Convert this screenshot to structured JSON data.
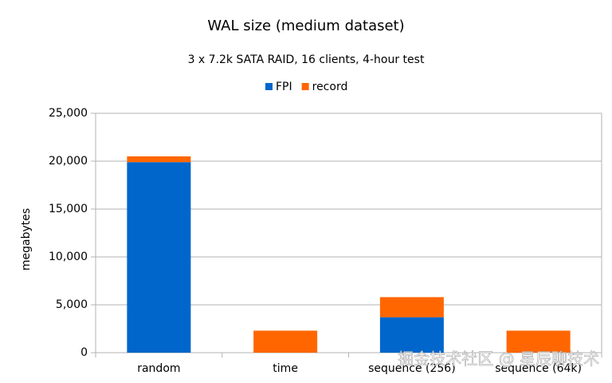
{
  "chart_data": {
    "type": "stacked_bar",
    "title": "WAL size (medium dataset)",
    "subtitle": "3 x 7.2k SATA RAID, 16 clients, 4-hour test",
    "y_label": "megabytes",
    "categories": [
      "random",
      "time",
      "sequence (256)",
      "sequence (64k)"
    ],
    "series": [
      {
        "name": "FPI",
        "color": "#0066cc",
        "values": [
          19900,
          0,
          3700,
          0
        ]
      },
      {
        "name": "record",
        "color": "#ff6600",
        "values": [
          600,
          2300,
          2100,
          2300
        ]
      }
    ],
    "ylim": [
      0,
      25000
    ],
    "yticks": [
      0,
      {
        "value": 5000,
        "label": "5,000"
      },
      {
        "value": 10000,
        "label": "10,000"
      },
      {
        "value": 15000,
        "label": "15,000"
      },
      {
        "value": 20000,
        "label": "20,000"
      },
      {
        "value": 25000,
        "label": "25,000"
      }
    ],
    "grid": true,
    "legend": "top",
    "watermark": "掘金技术社区 @ 星辰聊技术"
  }
}
